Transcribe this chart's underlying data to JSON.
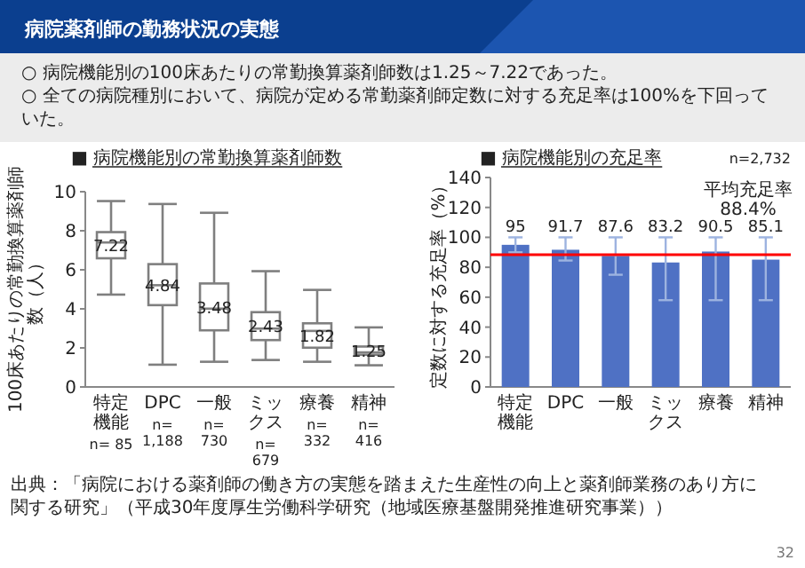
{
  "chart_data": [
    {
      "type": "other",
      "title": "病院薬剤師の勤務状況の実態",
      "annotations": [
        "○ 病院機能別の100床あたりの常勤換算薬剤師数は1.25～7.22であった。",
        "○ 全ての病院種別において、病院が定める常勤薬剤師定数に対する充足率は100%を下回っていた。",
        "出典：「病院における薬剤師の働き方の実態を踏まえた生産性の向上と薬剤師業務のあり方に関する研究」（平成30年度厚生労働科学研究（地域医療基盤開発推進研究事業））",
        "32"
      ]
    },
    {
      "type": "box",
      "title": "■ 病院機能別の常勤換算薬剤師数",
      "ylabel": "100床あたりの常勤換算薬剤師数（人）",
      "categories": [
        "特定機能\nn= 85",
        "DPC\nn= 1,188",
        "一般\nn= 730",
        "ミックス\nn= 679",
        "療養\nn= 332",
        "精神\nn= 416"
      ],
      "boxes": [
        {
          "low": 4.73,
          "q1": 6.59,
          "median": 7.4,
          "q3": 7.93,
          "high": 9.52
        },
        {
          "low": 1.14,
          "q1": 4.19,
          "median": 5.21,
          "q3": 6.29,
          "high": 9.37
        },
        {
          "low": 1.29,
          "q1": 2.9,
          "median": 4.01,
          "q3": 5.3,
          "high": 8.92
        },
        {
          "low": 1.38,
          "q1": 2.4,
          "median": 2.99,
          "q3": 3.83,
          "high": 5.93
        },
        {
          "low": 1.29,
          "q1": 2.01,
          "median": 2.87,
          "q3": 3.26,
          "high": 4.97
        },
        {
          "low": 1.11,
          "q1": 1.65,
          "median": 1.77,
          "q3": 2.07,
          "high": 3.05
        }
      ],
      "value_labels": [
        "7.22",
        "4.84",
        "3.48",
        "2.43",
        "1.82",
        "1.25"
      ],
      "ylim": [
        0,
        10
      ],
      "yticks": [
        0,
        2,
        4,
        6,
        8,
        10
      ]
    },
    {
      "type": "bar",
      "title": "■ 病院機能別の充足率",
      "ylabel": "定数に対する充足率（%）",
      "categories": [
        "特定機能",
        "DPC",
        "一般",
        "ミックス",
        "療養",
        "精神"
      ],
      "series": [
        {
          "color": "#4f71c4",
          "values": [
            95,
            91.7,
            87.6,
            83.2,
            90.5,
            85.1
          ],
          "errors": [
            [
              90,
              100
            ],
            [
              84.5,
              100
            ],
            [
              75,
              100
            ],
            [
              58,
              100
            ],
            [
              58,
              100
            ],
            [
              58,
              100
            ]
          ]
        }
      ],
      "ylim": [
        0,
        140
      ],
      "yticks": [
        0,
        20,
        40,
        60,
        80,
        100,
        120,
        140
      ],
      "data_labels": true,
      "ref_lines": [
        {
          "axis": "y",
          "value": 88.4,
          "color": "#ff0000",
          "label": "平均充足率\n88.4%"
        }
      ],
      "annotations": [
        "n=2,732"
      ]
    }
  ]
}
